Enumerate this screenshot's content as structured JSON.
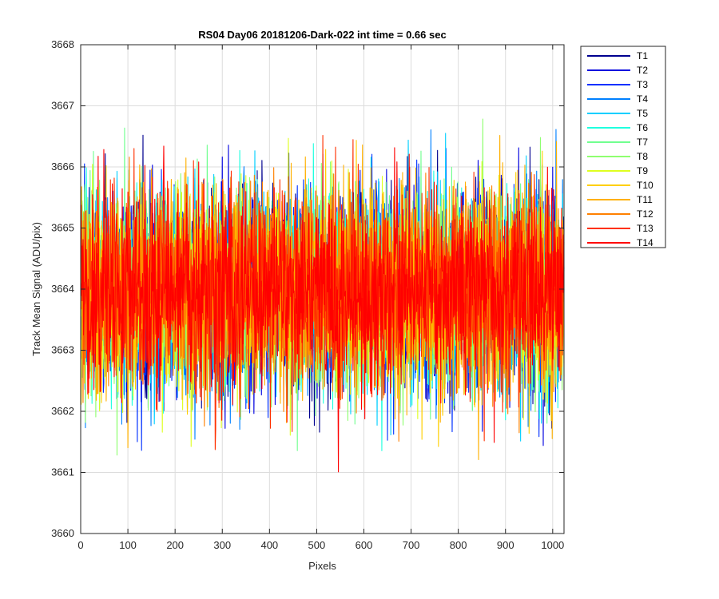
{
  "chart_data": {
    "type": "line",
    "title": "RS04 Day06 20181206-Dark-022 int time = 0.66 sec",
    "xlabel": "Pixels",
    "ylabel": "Track Mean Signal (ADU/pix)",
    "xlim": [
      0,
      1024
    ],
    "ylim": [
      3660,
      3668
    ],
    "xticks": [
      0,
      100,
      200,
      300,
      400,
      500,
      600,
      700,
      800,
      900,
      1000
    ],
    "yticks": [
      3660,
      3661,
      3662,
      3663,
      3664,
      3665,
      3666,
      3667,
      3668
    ],
    "grid": true,
    "legend_position": "outside-top-right",
    "x_domain": [
      1,
      1024
    ],
    "baseline": 3664,
    "spread_sd": 0.8,
    "series": [
      {
        "name": "T1",
        "color": "#00008F"
      },
      {
        "name": "T2",
        "color": "#0000DF"
      },
      {
        "name": "T3",
        "color": "#0030FF"
      },
      {
        "name": "T4",
        "color": "#0080FF"
      },
      {
        "name": "T5",
        "color": "#00CFFF"
      },
      {
        "name": "T6",
        "color": "#20FFDF"
      },
      {
        "name": "T7",
        "color": "#70FF8F"
      },
      {
        "name": "T8",
        "color": "#8FFF70"
      },
      {
        "name": "T9",
        "color": "#DFFF20"
      },
      {
        "name": "T10",
        "color": "#FFCF00"
      },
      {
        "name": "T11",
        "color": "#FFB000"
      },
      {
        "name": "T12",
        "color": "#FF8000"
      },
      {
        "name": "T13",
        "color": "#FF3000"
      },
      {
        "name": "T14",
        "color": "#FF0000"
      }
    ]
  }
}
